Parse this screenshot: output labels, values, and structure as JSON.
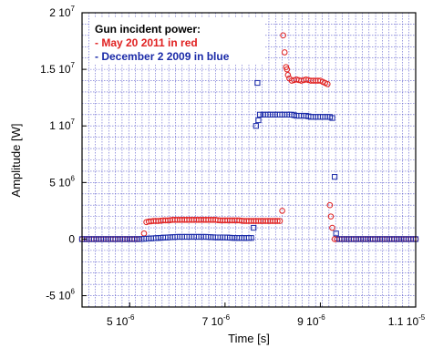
{
  "chart_data": {
    "type": "scatter",
    "title": "",
    "xlabel": "Time [s]",
    "ylabel": "Amplitude [W]",
    "xlim": [
      4e-06,
      1.1e-05
    ],
    "ylim": [
      -6000000.0,
      20000000.0
    ],
    "grid": true,
    "legend": {
      "heading": "Gun incident power:",
      "entries": [
        {
          "text": "- May 20 2011 in red",
          "color": "#e02020"
        },
        {
          "text": "- December 2 2009 in blue",
          "color": "#1a2aa8"
        }
      ]
    },
    "x_ticks": [
      {
        "value": 5e-06,
        "base": "5 10",
        "exp": "-6"
      },
      {
        "value": 7e-06,
        "base": "7 10",
        "exp": "-6"
      },
      {
        "value": 9e-06,
        "base": "9 10",
        "exp": "-6"
      },
      {
        "value": 1.1e-05,
        "base": "1.1 10",
        "exp": "-5"
      }
    ],
    "y_ticks": [
      {
        "value": 20000000.0,
        "base": "2 10",
        "exp": "7"
      },
      {
        "value": 15000000.0,
        "base": "1.5 10",
        "exp": "7"
      },
      {
        "value": 10000000.0,
        "base": "1 10",
        "exp": "7"
      },
      {
        "value": 5000000.0,
        "base": "5 10",
        "exp": "6"
      },
      {
        "value": 0,
        "base": "0",
        "exp": ""
      },
      {
        "value": -5000000.0,
        "base": "-5 10",
        "exp": "6"
      }
    ],
    "series": [
      {
        "name": "May 20 2011",
        "color": "#e02020",
        "marker": "circle",
        "points": [
          [
            4e-06,
            0
          ],
          [
            4.2e-06,
            0
          ],
          [
            4.4e-06,
            0
          ],
          [
            4.6e-06,
            0
          ],
          [
            4.8e-06,
            0
          ],
          [
            5e-06,
            0
          ],
          [
            5.2e-06,
            0
          ],
          [
            5.3e-06,
            500000
          ],
          [
            5.35e-06,
            1500000
          ],
          [
            5.4e-06,
            1550000
          ],
          [
            5.5e-06,
            1600000
          ],
          [
            5.6e-06,
            1600000
          ],
          [
            5.7e-06,
            1650000
          ],
          [
            5.8e-06,
            1650000
          ],
          [
            5.9e-06,
            1700000
          ],
          [
            6e-06,
            1700000
          ],
          [
            6.1e-06,
            1700000
          ],
          [
            6.2e-06,
            1700000
          ],
          [
            6.3e-06,
            1700000
          ],
          [
            6.4e-06,
            1700000
          ],
          [
            6.5e-06,
            1700000
          ],
          [
            6.6e-06,
            1700000
          ],
          [
            6.7e-06,
            1700000
          ],
          [
            6.8e-06,
            1700000
          ],
          [
            6.9e-06,
            1650000
          ],
          [
            7e-06,
            1650000
          ],
          [
            7.1e-06,
            1650000
          ],
          [
            7.2e-06,
            1650000
          ],
          [
            7.3e-06,
            1650000
          ],
          [
            7.4e-06,
            1600000
          ],
          [
            7.5e-06,
            1600000
          ],
          [
            7.6e-06,
            1600000
          ],
          [
            7.7e-06,
            1600000
          ],
          [
            7.8e-06,
            1600000
          ],
          [
            7.9e-06,
            1600000
          ],
          [
            8e-06,
            1600000
          ],
          [
            8.1e-06,
            1600000
          ],
          [
            8.15e-06,
            1600000
          ],
          [
            8.2e-06,
            2500000
          ],
          [
            8.22e-06,
            18000000
          ],
          [
            8.25e-06,
            16500000
          ],
          [
            8.28e-06,
            15200000
          ],
          [
            8.3e-06,
            15000000
          ],
          [
            8.32e-06,
            14500000
          ],
          [
            8.35e-06,
            14200000
          ],
          [
            8.4e-06,
            14000000
          ],
          [
            8.5e-06,
            14100000
          ],
          [
            8.6e-06,
            14000000
          ],
          [
            8.7e-06,
            14100000
          ],
          [
            8.8e-06,
            14000000
          ],
          [
            8.9e-06,
            14000000
          ],
          [
            9e-06,
            14000000
          ],
          [
            9.1e-06,
            13800000
          ],
          [
            9.15e-06,
            13700000
          ],
          [
            9.2e-06,
            3000000
          ],
          [
            9.22e-06,
            2000000
          ],
          [
            9.25e-06,
            1000000
          ],
          [
            9.3e-06,
            0
          ],
          [
            9.4e-06,
            0
          ],
          [
            9.6e-06,
            0
          ],
          [
            9.8e-06,
            0
          ],
          [
            1e-05,
            0
          ],
          [
            1.02e-05,
            0
          ],
          [
            1.04e-05,
            0
          ],
          [
            1.06e-05,
            0
          ],
          [
            1.08e-05,
            0
          ],
          [
            1.1e-05,
            0
          ]
        ]
      },
      {
        "name": "December 2 2009",
        "color": "#1a2aa8",
        "marker": "square",
        "points": [
          [
            4e-06,
            0
          ],
          [
            4.2e-06,
            0
          ],
          [
            4.4e-06,
            0
          ],
          [
            4.6e-06,
            0
          ],
          [
            4.8e-06,
            0
          ],
          [
            5e-06,
            0
          ],
          [
            5.2e-06,
            0
          ],
          [
            5.4e-06,
            50000
          ],
          [
            5.6e-06,
            100000
          ],
          [
            5.8e-06,
            150000
          ],
          [
            6e-06,
            200000
          ],
          [
            6.2e-06,
            200000
          ],
          [
            6.4e-06,
            200000
          ],
          [
            6.6e-06,
            200000
          ],
          [
            6.8e-06,
            150000
          ],
          [
            7e-06,
            150000
          ],
          [
            7.2e-06,
            100000
          ],
          [
            7.4e-06,
            100000
          ],
          [
            7.55e-06,
            100000
          ],
          [
            7.6e-06,
            1000000
          ],
          [
            7.65e-06,
            10000000
          ],
          [
            7.68e-06,
            13800000
          ],
          [
            7.7e-06,
            10500000
          ],
          [
            7.73e-06,
            11000000
          ],
          [
            7.8e-06,
            11000000
          ],
          [
            7.9e-06,
            11000000
          ],
          [
            8e-06,
            11000000
          ],
          [
            8.1e-06,
            11000000
          ],
          [
            8.2e-06,
            11000000
          ],
          [
            8.3e-06,
            11000000
          ],
          [
            8.4e-06,
            11000000
          ],
          [
            8.5e-06,
            10900000
          ],
          [
            8.6e-06,
            10900000
          ],
          [
            8.7e-06,
            10900000
          ],
          [
            8.8e-06,
            10800000
          ],
          [
            8.9e-06,
            10800000
          ],
          [
            9e-06,
            10800000
          ],
          [
            9.1e-06,
            10800000
          ],
          [
            9.2e-06,
            10800000
          ],
          [
            9.25e-06,
            10700000
          ],
          [
            9.3e-06,
            5500000
          ],
          [
            9.33e-06,
            500000
          ],
          [
            9.4e-06,
            0
          ],
          [
            9.6e-06,
            0
          ],
          [
            9.8e-06,
            0
          ],
          [
            1e-05,
            0
          ],
          [
            1.02e-05,
            0
          ],
          [
            1.04e-05,
            0
          ],
          [
            1.06e-05,
            0
          ],
          [
            1.08e-05,
            0
          ],
          [
            1.1e-05,
            0
          ]
        ]
      }
    ]
  }
}
